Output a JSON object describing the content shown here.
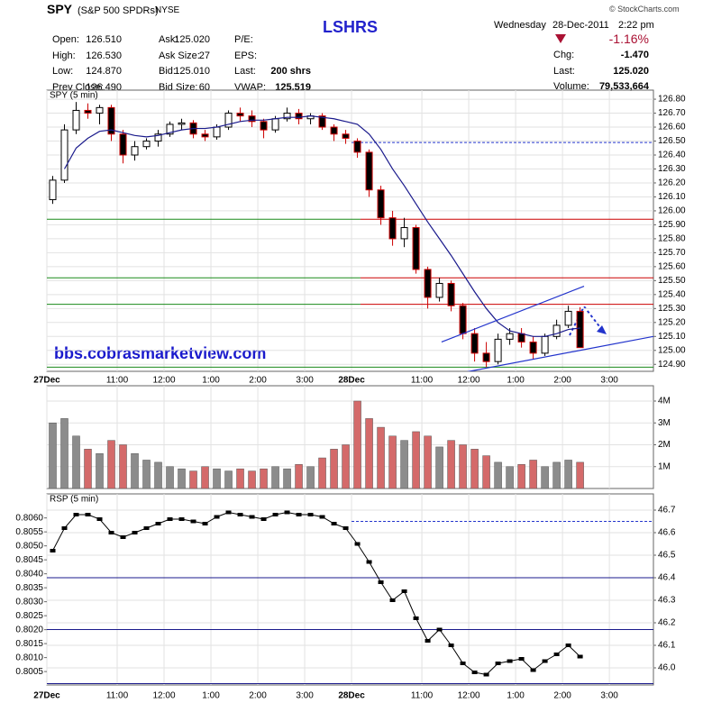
{
  "header": {
    "symbol": "SPY",
    "name": "(S&P 500 SPDRs)",
    "exchange": "NYSE",
    "title": "LSHRS",
    "weekday": "Wednesday",
    "date": "28-Dec-2011",
    "time": "2:22 pm",
    "copyright": "© StockCharts.com",
    "quote": [
      [
        {
          "label": "Open:",
          "value": "126.510"
        },
        {
          "label": "Ask:",
          "value": "125.020"
        },
        {
          "label": "P/E:"
        }
      ],
      [
        {
          "label": "High:",
          "value": "126.530"
        },
        {
          "label": "Ask Size:",
          "value": "27"
        },
        {
          "label": "EPS:"
        }
      ],
      [
        {
          "label": "Low:",
          "value": "124.870"
        },
        {
          "label": "Bid:",
          "value": "125.010"
        },
        {
          "label": "Last:",
          "value": "200 shrs"
        }
      ],
      [
        {
          "label": "Prev Close:",
          "value": "126.490"
        },
        {
          "label": "Bid Size:",
          "value": "60"
        },
        {
          "label": "VWAP:",
          "value": "125.519"
        }
      ]
    ],
    "change_pct": "-1.16%",
    "stats": [
      {
        "label": "Chg:",
        "value": "-1.470"
      },
      {
        "label": "Last:",
        "value": "125.020"
      },
      {
        "label": "Volume:",
        "value": "79,533,664"
      }
    ],
    "watermark": "bbs.cobrasmarketview.com"
  },
  "chart_data": [
    {
      "type": "candlestick",
      "title": "SPY (5 min)",
      "x": [
        0.125,
        0.375,
        0.625,
        0.875,
        1.125,
        1.375,
        1.625,
        1.875,
        2.125,
        2.375,
        2.625,
        2.875,
        3.125,
        3.375,
        3.625,
        3.875,
        4.125,
        4.375,
        4.625,
        4.875,
        5.125,
        5.375,
        5.625,
        5.875,
        6.125,
        6.375,
        6.625,
        6.875,
        7.125,
        7.375,
        7.625,
        7.875,
        8.125,
        8.375,
        8.625,
        8.875,
        9.125,
        9.375,
        9.625,
        9.875,
        10.125,
        10.375,
        10.625,
        10.875,
        11.125,
        11.375
      ],
      "open": [
        126.08,
        126.22,
        126.58,
        126.72,
        126.7,
        126.74,
        126.55,
        126.4,
        126.46,
        126.5,
        126.55,
        126.62,
        126.63,
        126.55,
        126.53,
        126.6,
        126.7,
        126.68,
        126.64,
        126.58,
        126.66,
        126.7,
        126.66,
        126.68,
        126.6,
        126.55,
        126.5,
        126.42,
        126.15,
        125.95,
        125.8,
        125.88,
        125.58,
        125.38,
        125.48,
        125.32,
        125.12,
        124.98,
        124.92,
        125.08,
        125.12,
        125.06,
        124.98,
        125.1,
        125.18,
        125.28
      ],
      "high": [
        126.25,
        126.62,
        126.78,
        126.77,
        126.76,
        126.76,
        126.58,
        126.5,
        126.52,
        126.58,
        126.64,
        126.66,
        126.65,
        126.58,
        126.62,
        126.72,
        126.74,
        126.72,
        126.66,
        126.68,
        126.74,
        126.73,
        126.7,
        126.7,
        126.62,
        126.58,
        126.52,
        126.44,
        126.18,
        126.0,
        125.95,
        125.9,
        125.6,
        125.52,
        125.5,
        125.34,
        125.16,
        125.06,
        125.12,
        125.16,
        125.16,
        125.1,
        125.12,
        125.22,
        125.32,
        125.31
      ],
      "low": [
        126.05,
        126.2,
        126.55,
        126.66,
        126.62,
        126.5,
        126.34,
        126.36,
        126.44,
        126.46,
        126.53,
        126.58,
        126.52,
        126.5,
        126.51,
        126.58,
        126.64,
        126.6,
        126.52,
        126.56,
        126.64,
        126.62,
        126.62,
        126.58,
        126.5,
        126.48,
        126.38,
        126.1,
        125.9,
        125.75,
        125.74,
        125.55,
        125.3,
        125.35,
        125.28,
        125.08,
        124.92,
        124.88,
        124.9,
        125.04,
        125.02,
        124.94,
        124.96,
        125.08,
        125.16,
        125.02
      ],
      "close": [
        126.22,
        126.58,
        126.72,
        126.7,
        126.74,
        126.55,
        126.4,
        126.46,
        126.5,
        126.55,
        126.62,
        126.63,
        126.55,
        126.53,
        126.6,
        126.7,
        126.68,
        126.64,
        126.58,
        126.66,
        126.7,
        126.66,
        126.68,
        126.6,
        126.55,
        126.52,
        126.42,
        126.15,
        125.95,
        125.8,
        125.88,
        125.58,
        125.38,
        125.48,
        125.32,
        125.12,
        124.98,
        124.92,
        125.08,
        125.12,
        125.06,
        124.98,
        125.1,
        125.18,
        125.28,
        125.02
      ],
      "ma": [
        null,
        126.3,
        126.45,
        126.52,
        126.57,
        126.58,
        126.56,
        126.54,
        126.53,
        126.54,
        126.56,
        126.58,
        126.59,
        126.59,
        126.6,
        126.62,
        126.64,
        126.65,
        126.65,
        126.66,
        126.67,
        126.67,
        126.68,
        126.67,
        126.66,
        126.64,
        126.62,
        126.55,
        126.44,
        126.3,
        126.18,
        126.05,
        125.92,
        125.8,
        125.68,
        125.55,
        125.42,
        125.3,
        125.2,
        125.14,
        125.12,
        125.1,
        125.1,
        125.12,
        125.15,
        125.16
      ],
      "up_color": "#ffffff",
      "down_color": "#000000",
      "falling_color": "#cc0000",
      "rising_color": "#000000",
      "ma_color": "#1a1a8c",
      "xlim": [
        0,
        12.94
      ],
      "xticks": [
        {
          "value": 0,
          "label": "27Dec"
        },
        {
          "value": 1.5,
          "label": "11:00"
        },
        {
          "value": 2.5,
          "label": "12:00"
        },
        {
          "value": 3.5,
          "label": "1:00"
        },
        {
          "value": 4.5,
          "label": "2:00"
        },
        {
          "value": 5.5,
          "label": "3:00"
        },
        {
          "value": 6.5,
          "label": "28Dec"
        },
        {
          "value": 8,
          "label": "11:00"
        },
        {
          "value": 9,
          "label": "12:00"
        },
        {
          "value": 10,
          "label": "1:00"
        },
        {
          "value": 11,
          "label": "2:00"
        },
        {
          "value": 12,
          "label": "3:00"
        }
      ],
      "ylim": [
        124.85,
        126.865
      ],
      "yticks": [
        {
          "value": 124.9,
          "label": "124.90"
        },
        {
          "value": 125,
          "label": "125.00"
        },
        {
          "value": 125.1,
          "label": "125.10"
        },
        {
          "value": 125.2,
          "label": "125.20"
        },
        {
          "value": 125.3,
          "label": "125.30"
        },
        {
          "value": 125.4,
          "label": "125.40"
        },
        {
          "value": 125.5,
          "label": "125.50"
        },
        {
          "value": 125.6,
          "label": "125.60"
        },
        {
          "value": 125.7,
          "label": "125.70"
        },
        {
          "value": 125.8,
          "label": "125.80"
        },
        {
          "value": 125.9,
          "label": "125.90"
        },
        {
          "value": 126,
          "label": "126.00"
        },
        {
          "value": 126.1,
          "label": "126.10"
        },
        {
          "value": 126.2,
          "label": "126.20"
        },
        {
          "value": 126.3,
          "label": "126.30"
        },
        {
          "value": 126.4,
          "label": "126.40"
        },
        {
          "value": 126.5,
          "label": "126.50"
        },
        {
          "value": 126.6,
          "label": "126.60"
        },
        {
          "value": 126.7,
          "label": "126.70"
        },
        {
          "value": 126.8,
          "label": "126.80"
        }
      ],
      "grid": true,
      "levels": [
        {
          "value": 126.49,
          "segments": [
            {
              "from": 6.5,
              "to": 12.94,
              "color": "#2233cc",
              "dash": true
            }
          ]
        },
        {
          "value": 125.94,
          "segments": [
            {
              "from": 0,
              "to": 6.69,
              "color": "#1a8a1a"
            },
            {
              "from": 6.69,
              "to": 12.94,
              "color": "#cc0000"
            }
          ]
        },
        {
          "value": 125.52,
          "segments": [
            {
              "from": 0,
              "to": 6.69,
              "color": "#1a8a1a"
            },
            {
              "from": 6.69,
              "to": 12.94,
              "color": "#cc0000"
            }
          ]
        },
        {
          "value": 125.33,
          "segments": [
            {
              "from": 0,
              "to": 6.69,
              "color": "#1a8a1a"
            },
            {
              "from": 6.69,
              "to": 12.94,
              "color": "#cc0000"
            }
          ]
        },
        {
          "value": 124.88,
          "segments": [
            {
              "from": 0,
              "to": 12.94,
              "color": "#1a8a1a"
            }
          ]
        }
      ],
      "lines": [
        {
          "x": [
            8.42,
            11.46
          ],
          "y": [
            125.06,
            125.46
          ],
          "color": "#2233cc"
        },
        {
          "x": [
            8.23,
            12.94
          ],
          "y": [
            124.8,
            125.1
          ],
          "color": "#2233cc"
        }
      ]
    },
    {
      "type": "bar",
      "values": [
        3000000,
        3200000,
        2400000,
        1800000,
        1600000,
        2200000,
        2000000,
        1600000,
        1300000,
        1200000,
        1000000,
        900000,
        800000,
        1000000,
        900000,
        800000,
        900000,
        800000,
        900000,
        1000000,
        900000,
        1100000,
        1000000,
        1400000,
        1800000,
        2000000,
        4000000,
        3200000,
        2800000,
        2400000,
        2200000,
        2600000,
        2400000,
        1900000,
        2200000,
        2000000,
        1800000,
        1500000,
        1200000,
        1000000,
        1100000,
        1300000,
        1000000,
        1200000,
        1300000,
        1200000
      ],
      "up_color": "#8c8c8c",
      "down_color": "#d46a6a",
      "ylim": [
        0,
        4700000
      ],
      "yticks": [
        {
          "value": 1000000,
          "label": "1M"
        },
        {
          "value": 2000000,
          "label": "2M"
        },
        {
          "value": 3000000,
          "label": "3M"
        },
        {
          "value": 4000000,
          "label": "4M"
        }
      ],
      "grid": true
    },
    {
      "type": "line",
      "title": "RSP (5 min)",
      "values": [
        46.52,
        46.62,
        46.68,
        46.68,
        46.66,
        46.6,
        46.58,
        46.6,
        46.62,
        46.64,
        46.66,
        46.66,
        46.65,
        46.64,
        46.67,
        46.69,
        46.68,
        46.67,
        46.66,
        46.68,
        46.69,
        46.68,
        46.68,
        46.67,
        46.64,
        46.62,
        46.55,
        46.47,
        46.38,
        46.3,
        46.34,
        46.22,
        46.12,
        46.17,
        46.1,
        46.02,
        45.98,
        45.97,
        46.02,
        46.03,
        46.04,
        45.99,
        46.03,
        46.06,
        46.1,
        46.05
      ],
      "color": "#000000",
      "xlim": [
        0,
        12.94
      ],
      "xticks": [
        {
          "value": 0,
          "label": "27Dec"
        },
        {
          "value": 1.5,
          "label": "11:00"
        },
        {
          "value": 2.5,
          "label": "12:00"
        },
        {
          "value": 3.5,
          "label": "1:00"
        },
        {
          "value": 4.5,
          "label": "2:00"
        },
        {
          "value": 5.5,
          "label": "3:00"
        },
        {
          "value": 6.5,
          "label": "28Dec"
        },
        {
          "value": 8,
          "label": "11:00"
        },
        {
          "value": 9,
          "label": "12:00"
        },
        {
          "value": 10,
          "label": "1:00"
        },
        {
          "value": 11,
          "label": "2:00"
        },
        {
          "value": 12,
          "label": "3:00"
        }
      ],
      "ylim": [
        45.924,
        46.772
      ],
      "yticks": [
        {
          "value": 46,
          "label": "46.0"
        },
        46.1,
        46.2,
        46.3,
        46.4,
        46.5,
        46.6,
        46.7
      ],
      "y2lim": [
        0.80002,
        0.80686
      ],
      "y2ticks": [
        0.8005,
        {
          "value": 0.801,
          "label": "0.8010"
        },
        0.8015,
        {
          "value": 0.802,
          "label": "0.8020"
        },
        0.8025,
        {
          "value": 0.803,
          "label": "0.8030"
        },
        0.8035,
        {
          "value": 0.804,
          "label": "0.8040"
        },
        0.8045,
        {
          "value": 0.805,
          "label": "0.8050"
        },
        0.8055,
        {
          "value": 0.806,
          "label": "0.8060"
        }
      ],
      "grid": true,
      "levels": [
        {
          "value": 46.65,
          "segments": [
            {
              "from": 6.5,
              "to": 12.94,
              "color": "#2233cc",
              "dash": true
            }
          ]
        },
        {
          "value": 46.4,
          "segments": [
            {
              "from": 0,
              "to": 12.94,
              "color": "#1a1a8c"
            }
          ]
        },
        {
          "value": 46.17,
          "segments": [
            {
              "from": 0,
              "to": 12.94,
              "color": "#1a1a8c"
            }
          ]
        },
        {
          "value": 45.93,
          "segments": [
            {
              "from": 0,
              "to": 12.94,
              "color": "#1a1a8c"
            }
          ]
        }
      ]
    }
  ]
}
